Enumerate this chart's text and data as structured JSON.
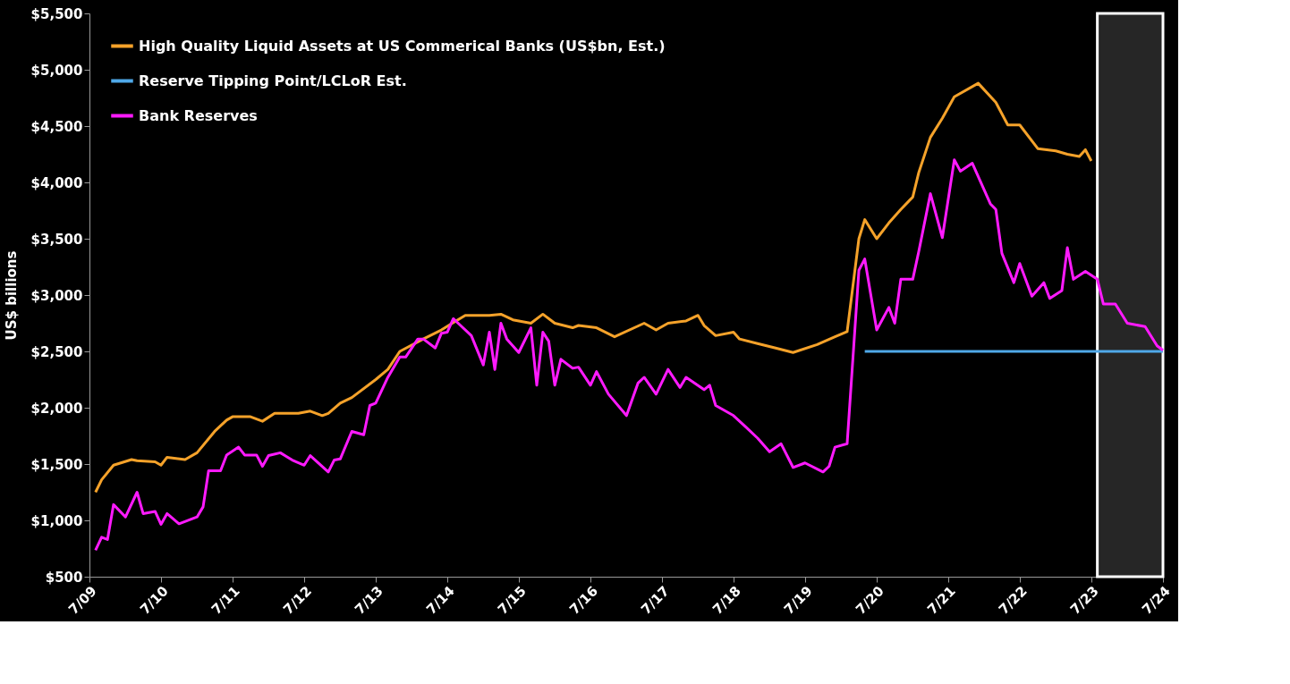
{
  "chart_data": {
    "type": "line",
    "ylabel": "US$ billions",
    "xlim": [
      "2009-07",
      "2024-07"
    ],
    "xticks": [
      {
        "value": "2009-07",
        "label": "7/09"
      },
      {
        "value": "2010-07",
        "label": "7/10"
      },
      {
        "value": "2011-07",
        "label": "7/11"
      },
      {
        "value": "2012-07",
        "label": "7/12"
      },
      {
        "value": "2013-07",
        "label": "7/13"
      },
      {
        "value": "2014-07",
        "label": "7/14"
      },
      {
        "value": "2015-07",
        "label": "7/15"
      },
      {
        "value": "2016-07",
        "label": "7/16"
      },
      {
        "value": "2017-07",
        "label": "7/17"
      },
      {
        "value": "2018-07",
        "label": "7/18"
      },
      {
        "value": "2019-07",
        "label": "7/19"
      },
      {
        "value": "2020-07",
        "label": "7/20"
      },
      {
        "value": "2021-07",
        "label": "7/21"
      },
      {
        "value": "2022-07",
        "label": "7/22"
      },
      {
        "value": "2023-07",
        "label": "7/23"
      },
      {
        "value": "2024-07",
        "label": "7/24"
      }
    ],
    "ylim": [
      500,
      5500
    ],
    "yticks": [
      {
        "value": 500,
        "label": "$500"
      },
      {
        "value": 1000,
        "label": "$1,000"
      },
      {
        "value": 1500,
        "label": "$1,500"
      },
      {
        "value": 2000,
        "label": "$2,000"
      },
      {
        "value": 2500,
        "label": "$2,500"
      },
      {
        "value": 3000,
        "label": "$3,000"
      },
      {
        "value": 3500,
        "label": "$3,500"
      },
      {
        "value": 4000,
        "label": "$4,000"
      },
      {
        "value": 4500,
        "label": "$4,500"
      },
      {
        "value": 5000,
        "label": "$5,000"
      },
      {
        "value": 5500,
        "label": "$5,500"
      }
    ],
    "grid": false,
    "legend": "top left",
    "bands": [
      {
        "axis": "x",
        "from": "2023-08",
        "to": "2024-07",
        "color": "#262626"
      }
    ],
    "series": [
      {
        "name": "High Quality Liquid Assets at US Commerical Banks (US$bn, Est.)",
        "color": "#f5a22a",
        "x": [
          "2009-08",
          "2009-09",
          "2009-11",
          "2010-02",
          "2010-03",
          "2010-06",
          "2010-07",
          "2010-08",
          "2010-11",
          "2011-01",
          "2011-04",
          "2011-06",
          "2011-07",
          "2011-10",
          "2011-12",
          "2012-02",
          "2012-06",
          "2012-08",
          "2012-10",
          "2012-11",
          "2013-01",
          "2013-03",
          "2013-07",
          "2013-09",
          "2013-11",
          "2014-03",
          "2014-06",
          "2014-10",
          "2015-02",
          "2015-04",
          "2015-06",
          "2015-09",
          "2015-11",
          "2016-01",
          "2016-04",
          "2016-05",
          "2016-08",
          "2016-11",
          "2017-04",
          "2017-06",
          "2017-08",
          "2017-11",
          "2018-01",
          "2018-02",
          "2018-04",
          "2018-07",
          "2018-08",
          "2018-11",
          "2019-02",
          "2019-05",
          "2019-09",
          "2019-12",
          "2020-02",
          "2020-04",
          "2020-05",
          "2020-07",
          "2020-09",
          "2020-11",
          "2021-01",
          "2021-02",
          "2021-04",
          "2021-06",
          "2021-08",
          "2021-12",
          "2022-03",
          "2022-05",
          "2022-07",
          "2022-10",
          "2023-01",
          "2023-03",
          "2023-05",
          "2023-06",
          "2023-07"
        ],
        "values": [
          1250,
          1360,
          1490,
          1540,
          1530,
          1520,
          1490,
          1560,
          1540,
          1600,
          1790,
          1890,
          1920,
          1920,
          1880,
          1950,
          1950,
          1970,
          1930,
          1950,
          2040,
          2090,
          2250,
          2340,
          2500,
          2610,
          2690,
          2820,
          2820,
          2830,
          2780,
          2750,
          2830,
          2750,
          2710,
          2730,
          2710,
          2630,
          2750,
          2690,
          2750,
          2770,
          2820,
          2730,
          2640,
          2670,
          2610,
          2570,
          2530,
          2490,
          2560,
          2630,
          2675,
          3500,
          3670,
          3500,
          3640,
          3760,
          3870,
          4090,
          4400,
          4570,
          4760,
          4880,
          4710,
          4510,
          4510,
          4300,
          4280,
          4250,
          4230,
          4290,
          4190
        ]
      },
      {
        "name": "Reserve Tipping Point/LCLoR Est.",
        "color": "#4fa8e8",
        "x": [
          "2020-05",
          "2024-07"
        ],
        "values": [
          2500,
          2500
        ]
      },
      {
        "name": "Bank Reserves",
        "color": "#ff1aff",
        "x": [
          "2009-08",
          "2009-09",
          "2009-10",
          "2009-11",
          "2010-01",
          "2010-03",
          "2010-04",
          "2010-06",
          "2010-07",
          "2010-08",
          "2010-10",
          "2011-01",
          "2011-02",
          "2011-03",
          "2011-05",
          "2011-06",
          "2011-08",
          "2011-09",
          "2011-11",
          "2011-12",
          "2012-01",
          "2012-03",
          "2012-05",
          "2012-07",
          "2012-08",
          "2012-11",
          "2012-12",
          "2013-01",
          "2013-03",
          "2013-05",
          "2013-06",
          "2013-07",
          "2013-09",
          "2013-11",
          "2013-12",
          "2014-02",
          "2014-03",
          "2014-05",
          "2014-06",
          "2014-07",
          "2014-08",
          "2014-09",
          "2014-11",
          "2015-01",
          "2015-02",
          "2015-03",
          "2015-04",
          "2015-05",
          "2015-07",
          "2015-09",
          "2015-10",
          "2015-11",
          "2015-12",
          "2016-01",
          "2016-02",
          "2016-04",
          "2016-05",
          "2016-07",
          "2016-08",
          "2016-10",
          "2017-01",
          "2017-03",
          "2017-04",
          "2017-06",
          "2017-08",
          "2017-10",
          "2017-11",
          "2018-02",
          "2018-03",
          "2018-04",
          "2018-07",
          "2018-09",
          "2018-11",
          "2019-01",
          "2019-03",
          "2019-05",
          "2019-07",
          "2019-10",
          "2019-11",
          "2019-12",
          "2020-02",
          "2020-04",
          "2020-05",
          "2020-07",
          "2020-09",
          "2020-10",
          "2020-11",
          "2021-01",
          "2021-02",
          "2021-04",
          "2021-06",
          "2021-08",
          "2021-09",
          "2021-11",
          "2022-02",
          "2022-03",
          "2022-04",
          "2022-06",
          "2022-07",
          "2022-09",
          "2022-11",
          "2022-12",
          "2023-02",
          "2023-03",
          "2023-04",
          "2023-06",
          "2023-08",
          "2023-09",
          "2023-11",
          "2024-01",
          "2024-04",
          "2024-06",
          "2024-07"
        ],
        "values": [
          735,
          850,
          830,
          1140,
          1030,
          1250,
          1060,
          1080,
          965,
          1060,
          970,
          1030,
          1120,
          1440,
          1440,
          1580,
          1650,
          1580,
          1580,
          1480,
          1575,
          1600,
          1535,
          1490,
          1575,
          1430,
          1535,
          1545,
          1790,
          1760,
          2020,
          2040,
          2270,
          2450,
          2450,
          2610,
          2610,
          2530,
          2660,
          2670,
          2790,
          2740,
          2640,
          2380,
          2670,
          2340,
          2750,
          2610,
          2490,
          2710,
          2200,
          2670,
          2590,
          2200,
          2430,
          2350,
          2360,
          2200,
          2320,
          2120,
          1930,
          2220,
          2270,
          2120,
          2340,
          2180,
          2270,
          2160,
          2200,
          2020,
          1930,
          1830,
          1730,
          1610,
          1680,
          1470,
          1510,
          1430,
          1480,
          1650,
          1680,
          3220,
          3320,
          2690,
          2890,
          2750,
          3140,
          3140,
          3390,
          3900,
          3510,
          4200,
          4100,
          4170,
          3810,
          3760,
          3370,
          3110,
          3280,
          2990,
          3110,
          2970,
          3040,
          3420,
          3140,
          3210,
          3140,
          2920,
          2920,
          2750,
          2720,
          2550,
          2510
        ]
      }
    ]
  }
}
